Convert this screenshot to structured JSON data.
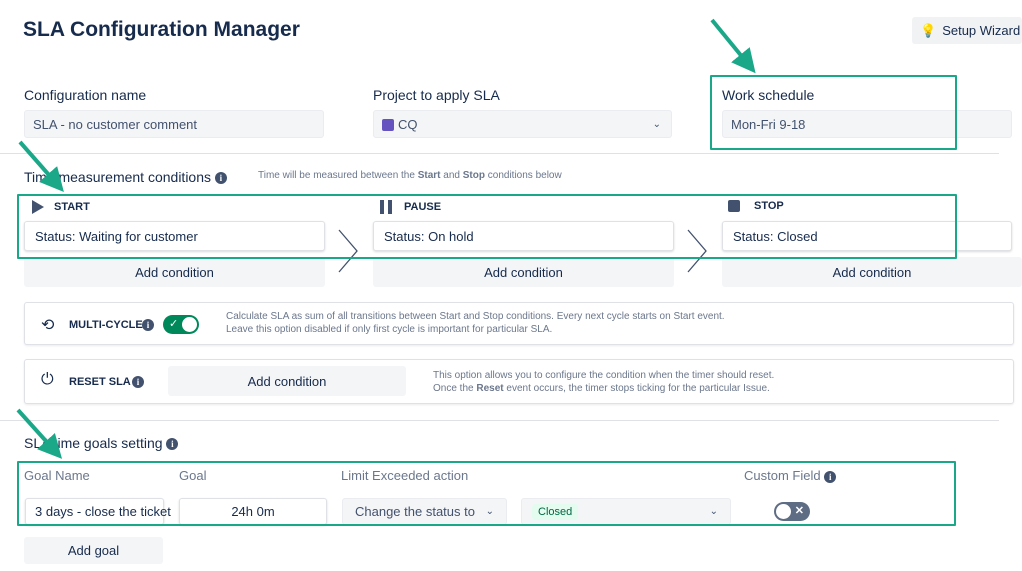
{
  "title": "SLA Configuration Manager",
  "setup_wizard": {
    "label": "Setup Wizard",
    "icon": "lightbulb-icon"
  },
  "config": {
    "name_label": "Configuration name",
    "name_value": "SLA - no customer comment",
    "project_label": "Project to apply SLA",
    "project_value": "CQ",
    "schedule_label": "Work schedule",
    "schedule_value": "Mon-Fri 9-18"
  },
  "time": {
    "heading": "Time measurement conditions",
    "hint_pre": "Time will be measured between the ",
    "hint_start": "Start",
    "hint_mid": " and ",
    "hint_stop": "Stop",
    "hint_post": " conditions below",
    "columns": [
      {
        "caption": "START",
        "icon": "play-icon",
        "condition": "Status: Waiting for customer",
        "add": "Add condition"
      },
      {
        "caption": "PAUSE",
        "icon": "pause-icon",
        "condition": "Status: On hold",
        "add": "Add condition"
      },
      {
        "caption": "STOP",
        "icon": "stop-icon",
        "condition": "Status: Closed",
        "add": "Add condition"
      }
    ]
  },
  "multicycle": {
    "label": "MULTI-CYCLE",
    "enabled": true,
    "desc1": "Calculate SLA as sum of all transitions between Start and Stop conditions. Every next cycle starts on Start event.",
    "desc2": "Leave this option disabled if only first cycle is important for particular SLA."
  },
  "reset": {
    "label": "RESET SLA",
    "add": "Add condition",
    "desc1": "This option allows you to configure the condition when the timer should reset.",
    "desc2_pre": "Once the ",
    "desc2_bold": "Reset",
    "desc2_post": " event occurs, the timer stops ticking for the particular Issue."
  },
  "goals": {
    "heading": "SLA time goals setting",
    "headers": [
      "Goal Name",
      "Goal",
      "Limit Exceeded action",
      "Custom Field"
    ],
    "row": {
      "name": "3 days - close the ticket",
      "goal": "24h 0m",
      "action": "Change the status to",
      "status": "Closed",
      "custom_field": false
    },
    "add": "Add goal"
  },
  "colors": {
    "highlight": "#1aa889",
    "toggle_on": "#00875a"
  }
}
